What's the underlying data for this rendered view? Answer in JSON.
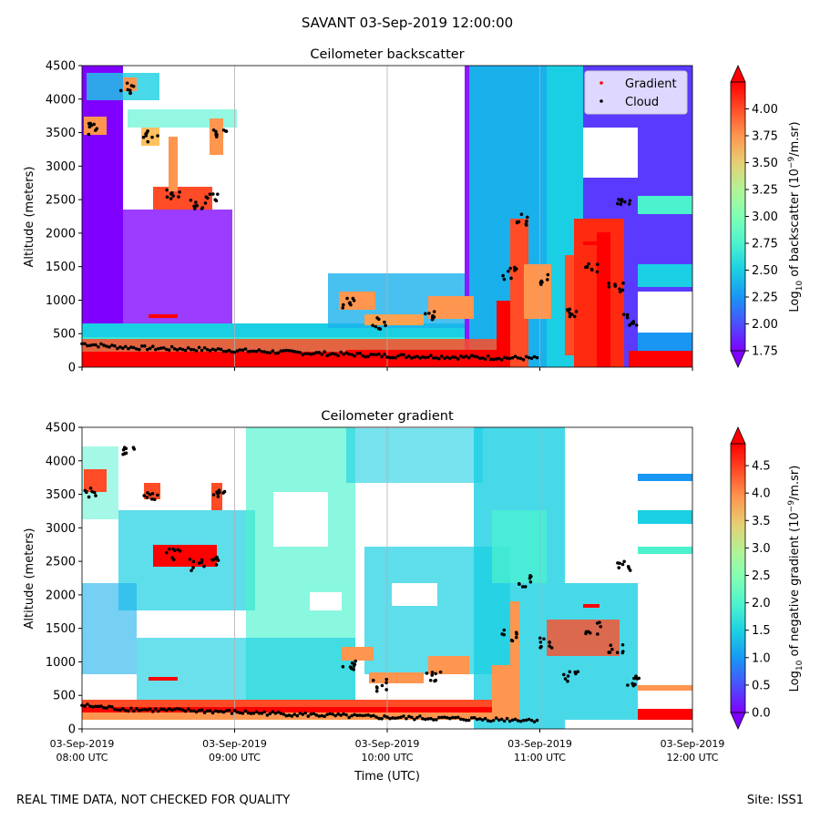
{
  "figure": {
    "suptitle": "SAVANT 03-Sep-2019 12:00:00",
    "footer_left": "REAL TIME DATA, NOT CHECKED FOR QUALITY",
    "footer_right": "Site: ISS1"
  },
  "colormap": [
    "#8000ff",
    "#4c4ffc",
    "#1996f3",
    "#1acfe3",
    "#4cf2ce",
    "#80ffb4",
    "#b2f296",
    "#e6cf73",
    "#ff964f",
    "#ff4c27",
    "#ff0000"
  ],
  "chart_data": [
    {
      "type": "heatmap",
      "title": "Ceilometer backscatter",
      "ylabel": "Altitude (meters)",
      "xlabel": "",
      "ylim": [
        0,
        4500
      ],
      "xlim": [
        "03-Sep-2019 08:00 UTC",
        "03-Sep-2019 12:00 UTC"
      ],
      "y_ticks": [
        "0",
        "500",
        "1000",
        "1500",
        "2000",
        "2500",
        "3000",
        "3500",
        "4000",
        "4500"
      ],
      "x_tick_labels": [],
      "grid": "vertical lines at each hour",
      "legend": {
        "placement": "top-right",
        "entries": [
          {
            "name": "Gradient",
            "color": "#ff0000"
          },
          {
            "name": "Cloud",
            "color": "#000000"
          }
        ]
      },
      "colorbar": {
        "label": "Log10 of backscatter (10^-9/m.sr)",
        "label_parts": [
          "Log",
          "10",
          " of backscatter (10",
          "−9",
          "/m.sr)"
        ],
        "range": [
          1.75,
          4.25
        ],
        "ticks": [
          "1.75",
          "2.00",
          "2.25",
          "2.50",
          "2.75",
          "3.00",
          "3.25",
          "3.50",
          "3.75",
          "4.00"
        ]
      },
      "cloud_series_approx": {
        "x_hours": [
          8.0,
          8.25,
          8.5,
          8.75,
          9.0,
          9.25,
          9.5,
          9.75,
          10.0,
          10.25,
          10.5,
          10.75,
          11.0
        ],
        "y_m": [
          350,
          300,
          280,
          270,
          250,
          230,
          210,
          190,
          170,
          160,
          150,
          140,
          130
        ]
      }
    },
    {
      "type": "heatmap",
      "title": "Ceilometer gradient",
      "ylabel": "Altitude (meters)",
      "xlabel": "Time (UTC)",
      "ylim": [
        0,
        4500
      ],
      "xlim": [
        "03-Sep-2019 08:00 UTC",
        "03-Sep-2019 12:00 UTC"
      ],
      "y_ticks": [
        "0",
        "500",
        "1000",
        "1500",
        "2000",
        "2500",
        "3000",
        "3500",
        "4000",
        "4500"
      ],
      "x_tick_labels": [
        {
          "date": "03-Sep-2019",
          "time": "08:00 UTC"
        },
        {
          "date": "03-Sep-2019",
          "time": "09:00 UTC"
        },
        {
          "date": "03-Sep-2019",
          "time": "10:00 UTC"
        },
        {
          "date": "03-Sep-2019",
          "time": "11:00 UTC"
        },
        {
          "date": "03-Sep-2019",
          "time": "12:00 UTC"
        }
      ],
      "grid": "vertical lines at each hour",
      "colorbar": {
        "label": "Log10 of negative gradient (10^-9/m.sr)",
        "label_parts": [
          "Log",
          "10",
          " of negative gradient (10",
          "−9",
          "/m.sr)"
        ],
        "range": [
          0.0,
          4.9
        ],
        "ticks": [
          "0.0",
          "0.5",
          "1.0",
          "1.5",
          "2.0",
          "2.5",
          "3.0",
          "3.5",
          "4.0",
          "4.5"
        ]
      }
    }
  ]
}
